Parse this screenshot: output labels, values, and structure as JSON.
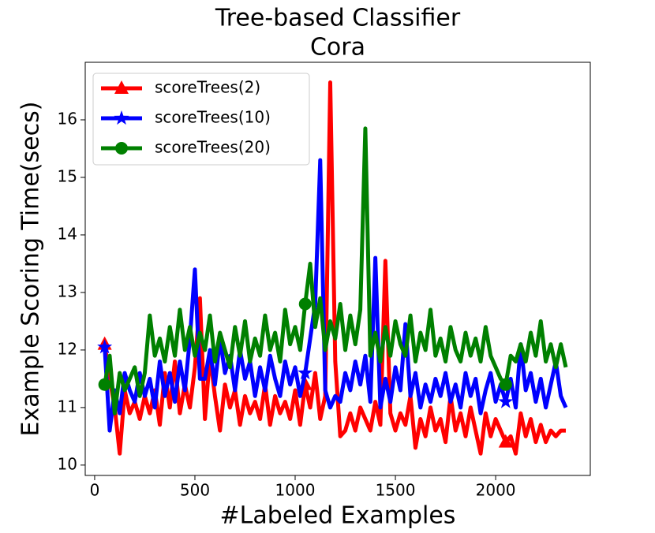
{
  "chart_data": {
    "type": "line",
    "title": [
      "Tree-based Classifier",
      "Cora"
    ],
    "xlabel": "#Labeled Examples",
    "ylabel": "Example Scoring Time(secs)",
    "x": [
      50,
      75,
      100,
      125,
      150,
      175,
      200,
      225,
      250,
      275,
      300,
      325,
      350,
      375,
      400,
      425,
      450,
      475,
      500,
      525,
      550,
      575,
      600,
      625,
      650,
      675,
      700,
      725,
      750,
      775,
      800,
      825,
      850,
      875,
      900,
      925,
      950,
      975,
      1000,
      1025,
      1050,
      1075,
      1100,
      1125,
      1150,
      1175,
      1200,
      1225,
      1250,
      1275,
      1300,
      1325,
      1350,
      1375,
      1400,
      1425,
      1450,
      1475,
      1500,
      1525,
      1550,
      1575,
      1600,
      1625,
      1650,
      1675,
      1700,
      1725,
      1750,
      1775,
      1800,
      1825,
      1850,
      1875,
      1900,
      1925,
      1950,
      1975,
      2000,
      2025,
      2050,
      2075,
      2100,
      2125,
      2150,
      2175,
      2200,
      2225,
      2250,
      2275,
      2300,
      2325,
      2350
    ],
    "series": [
      {
        "name": "scoreTrees(2)",
        "color": "#ff0000",
        "marker": "triangle",
        "values": [
          12.1,
          11.5,
          11.0,
          10.2,
          11.3,
          10.9,
          11.1,
          10.8,
          11.2,
          10.9,
          11.3,
          10.7,
          11.6,
          11.0,
          11.8,
          10.9,
          11.4,
          11.0,
          11.7,
          12.9,
          10.8,
          11.9,
          11.2,
          10.6,
          11.4,
          11.0,
          11.3,
          10.7,
          11.2,
          10.9,
          11.1,
          10.8,
          11.4,
          10.7,
          11.2,
          10.9,
          11.1,
          10.8,
          11.3,
          10.7,
          11.4,
          11.0,
          11.6,
          10.8,
          11.2,
          16.65,
          11.8,
          10.5,
          10.6,
          10.9,
          10.6,
          11.0,
          10.8,
          10.6,
          11.1,
          10.7,
          13.55,
          10.9,
          10.6,
          10.9,
          10.7,
          11.2,
          10.3,
          10.8,
          10.5,
          11.0,
          10.6,
          10.8,
          10.4,
          11.2,
          10.6,
          10.9,
          10.5,
          11.0,
          10.6,
          10.2,
          10.9,
          10.5,
          10.8,
          10.6,
          10.4,
          10.5,
          10.2,
          10.9,
          10.5,
          10.8,
          10.4,
          10.7,
          10.4,
          10.6,
          10.5,
          10.6,
          10.6
        ]
      },
      {
        "name": "scoreTrees(10)",
        "color": "#0000ff",
        "marker": "star",
        "values": [
          12.05,
          10.6,
          11.3,
          10.9,
          11.6,
          11.3,
          11.1,
          11.6,
          11.2,
          11.5,
          11.0,
          11.8,
          11.2,
          11.6,
          11.1,
          11.8,
          11.3,
          12.2,
          13.4,
          11.5,
          11.5,
          12.0,
          11.4,
          12.2,
          11.6,
          11.9,
          11.3,
          12.0,
          11.5,
          11.8,
          11.2,
          11.7,
          11.3,
          11.9,
          11.5,
          11.2,
          11.8,
          11.4,
          11.7,
          11.2,
          11.6,
          12.2,
          12.8,
          15.3,
          11.3,
          11.0,
          11.2,
          11.1,
          11.6,
          11.3,
          11.8,
          11.4,
          11.9,
          11.1,
          13.6,
          11.0,
          11.5,
          11.1,
          11.7,
          11.3,
          12.45,
          11.2,
          11.6,
          11.0,
          11.4,
          11.1,
          11.5,
          11.2,
          11.6,
          11.1,
          11.4,
          11.0,
          11.6,
          11.2,
          11.5,
          10.9,
          11.3,
          11.6,
          11.1,
          11.4,
          11.1,
          11.5,
          11.0,
          12.1,
          11.3,
          11.6,
          11.1,
          11.5,
          11.0,
          11.4,
          11.8,
          11.2,
          11.0
        ]
      },
      {
        "name": "scoreTrees(20)",
        "color": "#008000",
        "marker": "circle",
        "values": [
          11.4,
          11.9,
          10.9,
          11.6,
          11.3,
          11.5,
          11.7,
          11.2,
          11.6,
          12.6,
          11.9,
          12.2,
          11.8,
          12.4,
          11.9,
          12.7,
          12.0,
          12.4,
          11.9,
          12.3,
          12.0,
          12.6,
          11.8,
          12.3,
          12.0,
          11.7,
          12.4,
          11.9,
          12.5,
          11.8,
          12.2,
          11.9,
          12.6,
          12.0,
          12.3,
          11.8,
          12.7,
          12.1,
          12.4,
          12.0,
          12.8,
          13.5,
          12.4,
          12.9,
          12.0,
          12.5,
          12.2,
          12.8,
          12.0,
          12.6,
          12.1,
          12.7,
          15.85,
          11.9,
          12.3,
          11.8,
          12.4,
          11.9,
          12.5,
          12.1,
          11.9,
          12.6,
          11.8,
          12.3,
          12.0,
          12.7,
          11.9,
          12.2,
          11.8,
          12.4,
          12.0,
          11.8,
          12.3,
          11.9,
          12.2,
          11.8,
          12.4,
          11.9,
          11.7,
          11.5,
          11.4,
          11.9,
          11.8,
          12.1,
          11.8,
          12.3,
          11.9,
          12.5,
          11.8,
          12.1,
          11.7,
          12.1,
          11.7
        ]
      }
    ],
    "markevery": 40,
    "xlim": [
      -47,
      2472
    ],
    "xticks": [
      0,
      500,
      1000,
      1500,
      2000
    ],
    "ylim": [
      9.82,
      17.0
    ],
    "yticks": [
      10,
      11,
      12,
      13,
      14,
      15,
      16
    ],
    "grid": false,
    "legend_loc": "upper left"
  }
}
